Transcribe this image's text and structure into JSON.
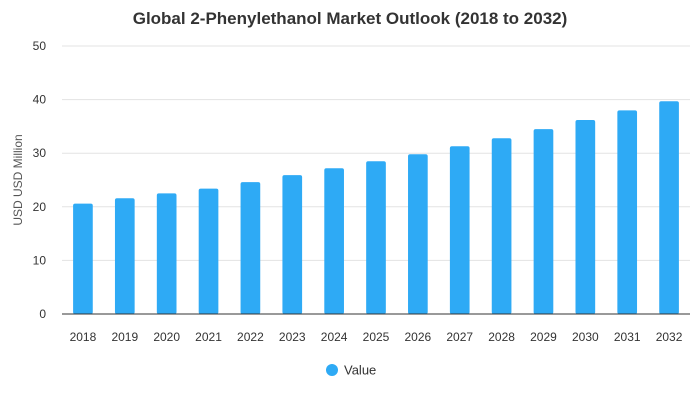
{
  "chart_data": {
    "type": "bar",
    "title": "Global 2-Phenylethanol Market Outlook (2018 to 2032)",
    "xlabel": "",
    "ylabel": "USD USD Million",
    "ylim": [
      0,
      50
    ],
    "yticks": [
      0,
      10,
      20,
      30,
      40,
      50
    ],
    "grid": true,
    "legend_position": "bottom",
    "categories": [
      "2018",
      "2019",
      "2020",
      "2021",
      "2022",
      "2023",
      "2024",
      "2025",
      "2026",
      "2027",
      "2028",
      "2029",
      "2030",
      "2031",
      "2032"
    ],
    "series": [
      {
        "name": "Value",
        "color": "#2eaaf5",
        "values": [
          20.6,
          21.6,
          22.5,
          23.4,
          24.6,
          25.9,
          27.2,
          28.5,
          29.8,
          31.3,
          32.8,
          34.5,
          36.2,
          38.0,
          39.7
        ]
      }
    ]
  }
}
